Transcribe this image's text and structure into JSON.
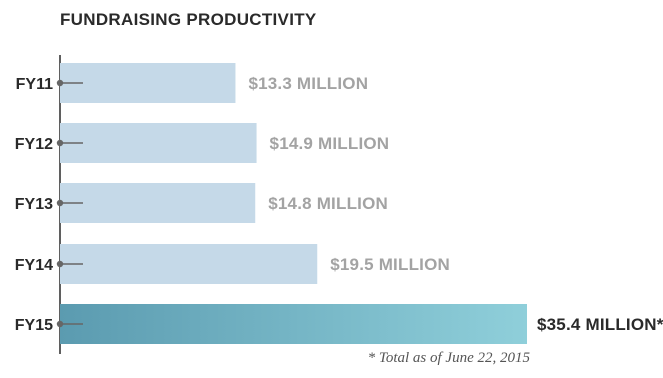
{
  "chart_data": {
    "type": "bar",
    "orientation": "horizontal",
    "title": "FUNDRAISING PRODUCTIVITY",
    "categories": [
      "FY11",
      "FY12",
      "FY13",
      "FY14",
      "FY15"
    ],
    "values": [
      13.3,
      14.9,
      14.8,
      19.5,
      35.4
    ],
    "value_labels": [
      "$13.3 MILLION",
      "$14.9 MILLION",
      "$14.8 MILLION",
      "$19.5 MILLION",
      "$35.4 MILLION*"
    ],
    "unit": "million USD",
    "highlight_index": 4,
    "footnote": "* Total as of June 22, 2015",
    "grid": false,
    "legend": "none",
    "colors": {
      "bar": "#c5d9e8",
      "highlight_start": "#5b9bb0",
      "highlight_end": "#8fcfda",
      "axis": "#2a2a2a",
      "marker": "#666666",
      "text": "#2a2a2a",
      "value_label": "#a3a3a3"
    }
  }
}
